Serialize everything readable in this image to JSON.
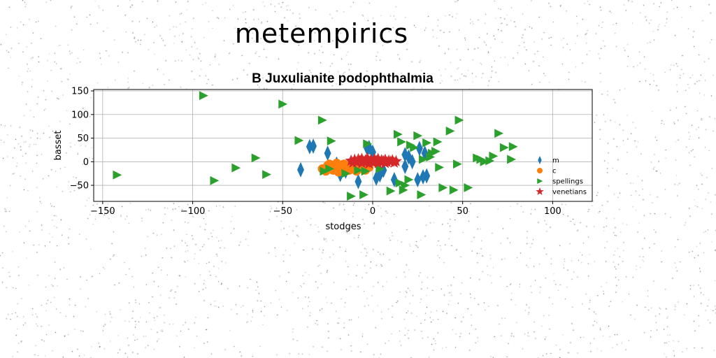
{
  "suptitle": "metempirics",
  "chart_data": {
    "type": "scatter",
    "title": "B Juxulianite podophthalmia",
    "xlabel": "stodges",
    "ylabel": "basset",
    "xlim": [
      -155,
      122
    ],
    "ylim": [
      -84,
      153
    ],
    "xticks": [
      -150,
      -100,
      -50,
      0,
      50,
      100
    ],
    "yticks": [
      -50,
      0,
      50,
      100,
      150
    ],
    "grid": true,
    "legend_position": "right",
    "series": [
      {
        "name": "m",
        "marker": "thin_diamond",
        "color": "#1f77b4",
        "points": [
          [
            -40,
            -17
          ],
          [
            -35,
            32
          ],
          [
            -33,
            33
          ],
          [
            -25,
            18
          ],
          [
            -20,
            -5
          ],
          [
            -18,
            -27
          ],
          [
            -15,
            -20
          ],
          [
            -12,
            -5
          ],
          [
            -8,
            -42
          ],
          [
            -3,
            28
          ],
          [
            -2,
            30
          ],
          [
            0,
            20
          ],
          [
            2,
            -35
          ],
          [
            4,
            -28
          ],
          [
            6,
            -18
          ],
          [
            12,
            -38
          ],
          [
            18,
            -10
          ],
          [
            18,
            15
          ],
          [
            20,
            10
          ],
          [
            22,
            0
          ],
          [
            25,
            -38
          ],
          [
            26,
            28
          ],
          [
            28,
            -32
          ],
          [
            29,
            18
          ],
          [
            30,
            -30
          ]
        ]
      },
      {
        "name": "c",
        "marker": "circle",
        "color": "#ff7f0e",
        "points": [
          [
            -28,
            -15
          ],
          [
            -26,
            -20
          ],
          [
            -25,
            -8
          ],
          [
            -24,
            -5
          ],
          [
            -22,
            -18
          ],
          [
            -22,
            -12
          ],
          [
            -20,
            -3
          ],
          [
            -19,
            -22
          ],
          [
            -18,
            -10
          ],
          [
            -17,
            -15
          ],
          [
            -16,
            -5
          ],
          [
            -15,
            -20
          ],
          [
            -14,
            -12
          ],
          [
            -13,
            -18
          ],
          [
            -12,
            -8
          ],
          [
            -11,
            -15
          ],
          [
            -10,
            -4
          ],
          [
            -9,
            -20
          ],
          [
            -8,
            -12
          ],
          [
            -7,
            -6
          ],
          [
            -6,
            -15
          ],
          [
            -5,
            -10
          ],
          [
            -4,
            -18
          ],
          [
            -3,
            -5
          ],
          [
            -2,
            -12
          ]
        ]
      },
      {
        "name": "spellings",
        "marker": "triangle_right",
        "color": "#2ca02c",
        "points": [
          [
            -142,
            -28
          ],
          [
            -94,
            140
          ],
          [
            -88,
            -40
          ],
          [
            -76,
            -13
          ],
          [
            -65,
            8
          ],
          [
            -59,
            -27
          ],
          [
            -50,
            122
          ],
          [
            -41,
            45
          ],
          [
            -28,
            88
          ],
          [
            -27,
            -20
          ],
          [
            -24,
            -15
          ],
          [
            -23,
            44
          ],
          [
            -15,
            -25
          ],
          [
            -12,
            -73
          ],
          [
            -8,
            -18
          ],
          [
            -5,
            -70
          ],
          [
            -4,
            -20
          ],
          [
            -3,
            38
          ],
          [
            4,
            -15
          ],
          [
            10,
            -62
          ],
          [
            14,
            58
          ],
          [
            15,
            -45
          ],
          [
            16,
            42
          ],
          [
            17,
            -60
          ],
          [
            18,
            -50
          ],
          [
            20,
            -38
          ],
          [
            21,
            35
          ],
          [
            23,
            30
          ],
          [
            25,
            55
          ],
          [
            27,
            -70
          ],
          [
            28,
            5
          ],
          [
            30,
            40
          ],
          [
            32,
            10
          ],
          [
            33,
            18
          ],
          [
            35,
            22
          ],
          [
            36,
            42
          ],
          [
            37,
            -12
          ],
          [
            39,
            -55
          ],
          [
            43,
            65
          ],
          [
            45,
            -60
          ],
          [
            47,
            -5
          ],
          [
            48,
            88
          ],
          [
            53,
            -55
          ],
          [
            58,
            8
          ],
          [
            60,
            5
          ],
          [
            62,
            0
          ],
          [
            65,
            2
          ],
          [
            67,
            12
          ],
          [
            70,
            60
          ],
          [
            73,
            30
          ],
          [
            78,
            32
          ],
          [
            77,
            5
          ]
        ]
      },
      {
        "name": "venetians",
        "marker": "star",
        "color": "#d62728",
        "points": [
          [
            -12,
            2
          ],
          [
            -10,
            4
          ],
          [
            -9,
            -1
          ],
          [
            -8,
            5
          ],
          [
            -7,
            2
          ],
          [
            -6,
            6
          ],
          [
            -5,
            0
          ],
          [
            -4,
            3
          ],
          [
            -3,
            7
          ],
          [
            -2,
            1
          ],
          [
            -1,
            4
          ],
          [
            0,
            -2
          ],
          [
            1,
            5
          ],
          [
            2,
            2
          ],
          [
            3,
            6
          ],
          [
            4,
            0
          ],
          [
            5,
            3
          ],
          [
            6,
            1
          ],
          [
            7,
            4
          ],
          [
            8,
            -1
          ],
          [
            9,
            2
          ],
          [
            10,
            0
          ],
          [
            11,
            3
          ],
          [
            12,
            -2
          ],
          [
            -11,
            -2
          ],
          [
            -6,
            -3
          ],
          [
            -2,
            -4
          ],
          [
            3,
            -3
          ],
          [
            7,
            -3
          ],
          [
            13,
            1
          ]
        ]
      }
    ]
  }
}
